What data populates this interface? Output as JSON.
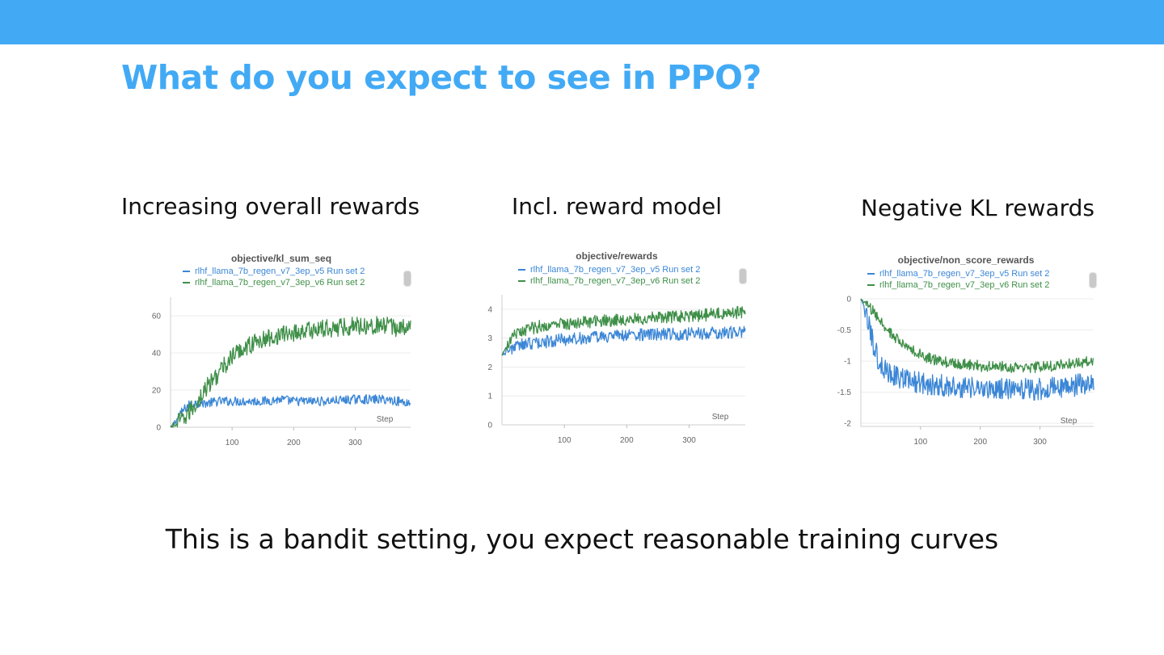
{
  "slide": {
    "title": "What do you expect to see in PPO?",
    "footer": "This is a bandit setting, you expect reasonable training curves",
    "accent_color": "#42aaf5"
  },
  "panels": [
    {
      "caption": "Increasing overall rewards"
    },
    {
      "caption": "Incl. reward model"
    },
    {
      "caption": "Negative KL rewards"
    }
  ],
  "chart_data": [
    {
      "type": "line",
      "title": "objective/kl_sum_seq",
      "xlabel": "Step",
      "ylabel": "",
      "xlim": [
        0,
        390
      ],
      "ylim": [
        0,
        70
      ],
      "xticks": [
        100,
        200,
        300
      ],
      "yticks": [
        0,
        20,
        40,
        60
      ],
      "ytick_labels": [
        "0",
        "20",
        "40",
        "60"
      ],
      "grid": true,
      "legend": "top",
      "series": [
        {
          "name": "rlhf_llama_7b_regen_v7_3ep_v5 Run set 2",
          "color": "#3b86d6",
          "x": [
            0,
            10,
            20,
            30,
            40,
            60,
            80,
            100,
            120,
            150,
            180,
            200,
            250,
            300,
            350,
            390
          ],
          "y": [
            0,
            4,
            9,
            12,
            13,
            13,
            14,
            14,
            14,
            14,
            15,
            14,
            14,
            15,
            15,
            13
          ],
          "noise": 2.5
        },
        {
          "name": "rlhf_llama_7b_regen_v7_3ep_v6 Run set 2",
          "color": "#3f8f48",
          "x": [
            0,
            20,
            40,
            60,
            80,
            100,
            120,
            140,
            160,
            180,
            200,
            220,
            250,
            280,
            300,
            330,
            360,
            390
          ],
          "y": [
            0,
            4,
            12,
            22,
            30,
            38,
            43,
            46,
            48,
            50,
            51,
            52,
            53,
            54,
            55,
            55,
            54,
            53
          ],
          "noise": 5
        }
      ]
    },
    {
      "type": "line",
      "title": "objective/rewards",
      "xlabel": "Step",
      "ylabel": "",
      "xlim": [
        0,
        390
      ],
      "ylim": [
        0,
        4.5
      ],
      "xticks": [
        100,
        200,
        300
      ],
      "yticks": [
        0,
        1,
        2,
        3,
        4
      ],
      "ytick_labels": [
        "0",
        "1",
        "2",
        "3",
        "4"
      ],
      "grid": true,
      "legend": "top",
      "series": [
        {
          "name": "rlhf_llama_7b_regen_v7_3ep_v5 Run set 2",
          "color": "#3b86d6",
          "x": [
            0,
            10,
            20,
            40,
            60,
            80,
            100,
            130,
            160,
            200,
            250,
            300,
            350,
            390
          ],
          "y": [
            2.4,
            2.6,
            2.7,
            2.8,
            2.85,
            2.9,
            2.95,
            3.0,
            3.05,
            3.1,
            3.12,
            3.15,
            3.18,
            3.2
          ],
          "noise": 0.22
        },
        {
          "name": "rlhf_llama_7b_regen_v7_3ep_v6 Run set 2",
          "color": "#3f8f48",
          "x": [
            0,
            10,
            20,
            40,
            60,
            80,
            100,
            130,
            160,
            200,
            250,
            300,
            350,
            390
          ],
          "y": [
            2.4,
            2.8,
            3.1,
            3.3,
            3.4,
            3.45,
            3.5,
            3.55,
            3.6,
            3.65,
            3.7,
            3.75,
            3.85,
            3.9
          ],
          "noise": 0.22
        }
      ]
    },
    {
      "type": "line",
      "title": "objective/non_score_rewards",
      "xlabel": "Step",
      "ylabel": "",
      "xlim": [
        0,
        390
      ],
      "ylim": [
        -2.05,
        0
      ],
      "xticks": [
        100,
        200,
        300
      ],
      "yticks": [
        0,
        -0.5,
        -1,
        -1.5,
        -2
      ],
      "ytick_labels": [
        "0",
        "-0.5",
        "-1",
        "-1.5",
        "-2"
      ],
      "grid": true,
      "legend": "top",
      "series": [
        {
          "name": "rlhf_llama_7b_regen_v7_3ep_v5 Run set 2",
          "color": "#3b86d6",
          "x": [
            0,
            10,
            20,
            30,
            40,
            60,
            80,
            100,
            150,
            200,
            250,
            300,
            350,
            390
          ],
          "y": [
            0,
            -0.3,
            -0.7,
            -1.0,
            -1.15,
            -1.25,
            -1.3,
            -1.35,
            -1.4,
            -1.45,
            -1.45,
            -1.45,
            -1.4,
            -1.35
          ],
          "noise": 0.18
        },
        {
          "name": "rlhf_llama_7b_regen_v7_3ep_v6 Run set 2",
          "color": "#3f8f48",
          "x": [
            0,
            20,
            40,
            60,
            80,
            100,
            120,
            150,
            180,
            200,
            250,
            300,
            350,
            390
          ],
          "y": [
            0,
            -0.2,
            -0.45,
            -0.65,
            -0.8,
            -0.9,
            -0.98,
            -1.03,
            -1.06,
            -1.08,
            -1.1,
            -1.1,
            -1.05,
            -1.0
          ],
          "noise": 0.09
        }
      ]
    }
  ]
}
